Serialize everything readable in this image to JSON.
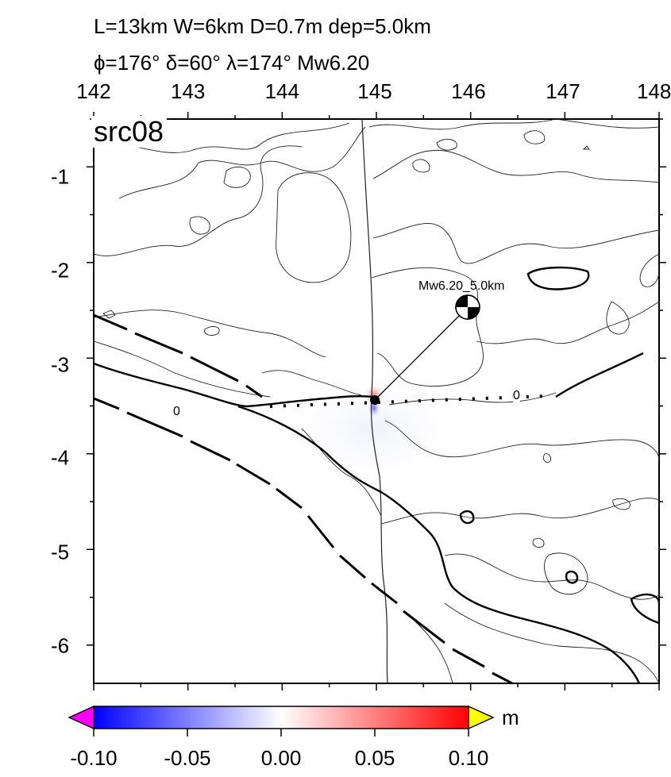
{
  "header": {
    "line1": "L=13km W=6km D=0.7m dep=5.0km",
    "line2": "ϕ=176° δ=60° λ=174° Mw6.20"
  },
  "map": {
    "source_tag": "src08",
    "x_ticks": [
      "142",
      "143",
      "144",
      "145",
      "146",
      "147",
      "148"
    ],
    "y_ticks": [
      "-1",
      "-2",
      "-3",
      "-4",
      "-5",
      "-6"
    ],
    "lon_range": [
      142,
      148
    ],
    "lat_range": [
      -6.4,
      -0.5
    ],
    "mechanism_label": "Mw6.20_5.0km",
    "epicenter": {
      "lon": 145.0,
      "lat": -3.38
    },
    "mechanism": {
      "lon": 146.0,
      "lat": -2.42
    },
    "contour_labels": [
      "0",
      "0"
    ]
  },
  "colorbar": {
    "unit": "m",
    "ticks": [
      "-0.10",
      "-0.05",
      "0.00",
      "0.05",
      "0.10"
    ],
    "min": -0.1,
    "max": 0.1,
    "colors": {
      "low": "#0000ff",
      "mid": "#ffffff",
      "high": "#ff0000",
      "under": "#ff00ff",
      "over": "#ffff00"
    }
  }
}
